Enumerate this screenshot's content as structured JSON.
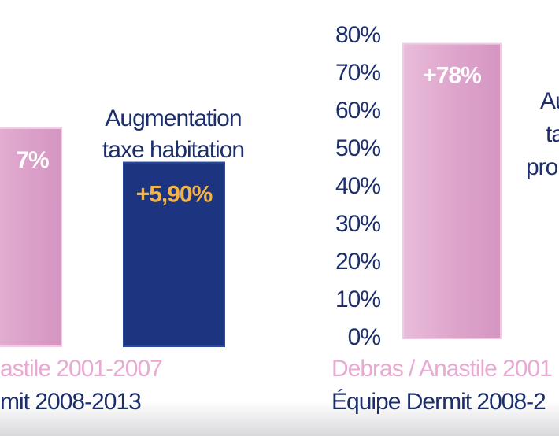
{
  "chart_data": [
    {
      "type": "bar",
      "title_lines": [
        "Augmentation",
        "taxe habitation"
      ],
      "series": [
        {
          "name": "astile 2001-2007",
          "color": "#dea6cc",
          "label_color": "#ffffff",
          "values": [
            7
          ],
          "value_labels": [
            "7%"
          ]
        },
        {
          "name": "mit 2008-2013",
          "color": "#1d3580",
          "label_color": "#f3b447",
          "values": [
            5.9
          ],
          "value_labels": [
            "+5,90%"
          ]
        }
      ]
    },
    {
      "type": "bar",
      "title_lines": [
        "Au",
        "ta",
        "pro"
      ],
      "ylim": [
        0,
        80
      ],
      "yticks": [
        {
          "value": 0,
          "label": "0%"
        },
        {
          "value": 10,
          "label": "10%"
        },
        {
          "value": 20,
          "label": "20%"
        },
        {
          "value": 30,
          "label": "30%"
        },
        {
          "value": 40,
          "label": "40%"
        },
        {
          "value": 50,
          "label": "50%"
        },
        {
          "value": 60,
          "label": "60%"
        },
        {
          "value": 70,
          "label": "70%"
        },
        {
          "value": 80,
          "label": "80%"
        }
      ],
      "series": [
        {
          "name": "Debras / Anastile 2001",
          "color": "#dea6cc",
          "label_color": "#ffffff",
          "values": [
            78
          ],
          "value_labels": [
            "+78%"
          ]
        },
        {
          "name": "Équipe Dermit 2008-2",
          "color": "#1d2f6b",
          "label_color": "#ffffff",
          "values": []
        }
      ]
    }
  ]
}
